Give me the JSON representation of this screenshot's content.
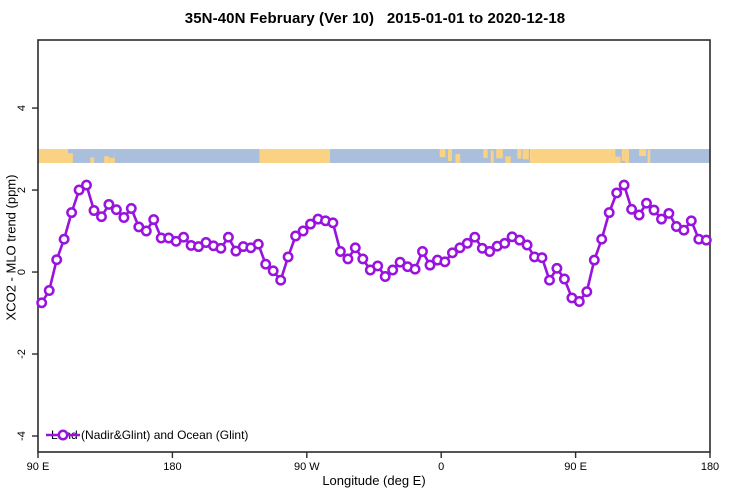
{
  "header": {
    "title": "35N-40N February (Ver 10)   2015-01-01 to 2020-12-18"
  },
  "chart_data": {
    "type": "line",
    "title": "35N-40N February (Ver 10)   2015-01-01 to 2020-12-18",
    "xlabel": "Longitude (deg E)",
    "ylabel": "XCO2 - MLO trend (ppm)",
    "xlim": [
      90,
      540
    ],
    "ylim": [
      -4.39,
      5.66
    ],
    "grid": false,
    "x_ticks": [
      {
        "pos": 90,
        "label": "90 E"
      },
      {
        "pos": 180,
        "label": "180"
      },
      {
        "pos": 270,
        "label": "90 W"
      },
      {
        "pos": 360,
        "label": "0"
      },
      {
        "pos": 450,
        "label": "90 E"
      },
      {
        "pos": 540,
        "label": "180"
      }
    ],
    "y_ticks": [
      {
        "pos": -4,
        "label": "-4"
      },
      {
        "pos": -2,
        "label": "-2"
      },
      {
        "pos": 0,
        "label": "0"
      },
      {
        "pos": 2,
        "label": "2"
      },
      {
        "pos": 4,
        "label": "4"
      }
    ],
    "legend": {
      "position": "bottom-left",
      "entries": [
        {
          "label": "Land (Nadir&Glint) and Ocean (Glint)",
          "color": "#9912DD",
          "marker": "open-circle"
        }
      ]
    },
    "series": [
      {
        "name": "Land (Nadir&Glint) and Ocean (Glint)",
        "color": "#9912DD",
        "marker": "open-circle",
        "x": [
          92.5,
          97.5,
          102.5,
          107.5,
          112.5,
          117.5,
          122.5,
          127.5,
          132.5,
          137.5,
          142.5,
          147.5,
          152.5,
          157.5,
          162.5,
          167.5,
          172.5,
          177.5,
          182.5,
          187.5,
          192.5,
          197.5,
          202.5,
          207.5,
          212.5,
          217.5,
          222.5,
          227.5,
          232.5,
          237.5,
          242.5,
          247.5,
          252.5,
          257.5,
          262.5,
          267.5,
          272.5,
          277.5,
          282.5,
          287.5,
          292.5,
          297.5,
          302.5,
          307.5,
          312.5,
          317.5,
          322.5,
          327.5,
          332.5,
          337.5,
          342.5,
          347.5,
          352.5,
          357.5,
          362.5,
          367.5,
          372.5,
          377.5,
          382.5,
          387.5,
          392.5,
          397.5,
          402.5,
          407.5,
          412.5,
          417.5,
          422.5,
          427.5,
          432.5,
          437.5,
          442.5,
          447.5,
          452.5,
          457.5,
          462.5,
          467.5,
          472.5,
          477.5,
          482.5,
          487.5,
          492.5,
          497.5,
          502.5,
          507.5,
          512.5,
          517.5,
          522.5,
          527.5,
          532.5,
          537.5
        ],
        "y": [
          -0.75,
          -0.45,
          0.3,
          0.8,
          1.45,
          2.0,
          2.12,
          1.5,
          1.35,
          1.65,
          1.52,
          1.33,
          1.55,
          1.1,
          1.0,
          1.28,
          0.83,
          0.83,
          0.75,
          0.85,
          0.65,
          0.62,
          0.72,
          0.64,
          0.58,
          0.85,
          0.51,
          0.62,
          0.59,
          0.68,
          0.19,
          0.03,
          -0.2,
          0.37,
          0.88,
          1.0,
          1.17,
          1.29,
          1.25,
          1.2,
          0.5,
          0.32,
          0.59,
          0.32,
          0.05,
          0.15,
          -0.11,
          0.05,
          0.24,
          0.13,
          0.07,
          0.5,
          0.17,
          0.29,
          0.25,
          0.47,
          0.59,
          0.7,
          0.85,
          0.58,
          0.5,
          0.63,
          0.7,
          0.86,
          0.78,
          0.66,
          0.37,
          0.35,
          -0.2,
          0.09,
          -0.17,
          -0.63,
          -0.72,
          -0.48,
          0.29,
          0.8,
          1.45,
          1.93,
          2.12,
          1.53,
          1.39,
          1.68,
          1.51,
          1.29,
          1.43,
          1.11,
          1.02,
          1.25,
          0.8,
          0.78
        ]
      }
    ],
    "surface_band": {
      "description": "land/ocean surface-type strip",
      "y_range_ppm": [
        2.66,
        3.0
      ],
      "colors": {
        "land": "#FAD284",
        "ocean": "#A9BFDC"
      },
      "segments": [
        {
          "from": 90,
          "to": 110,
          "type": "land"
        },
        {
          "from": 110,
          "to": 141.5,
          "type": "mixed"
        },
        {
          "from": 141.5,
          "to": 238.5,
          "type": "ocean"
        },
        {
          "from": 238.5,
          "to": 285.5,
          "type": "land"
        },
        {
          "from": 285.5,
          "to": 352.5,
          "type": "ocean"
        },
        {
          "from": 352.5,
          "to": 419.5,
          "type": "mixed"
        },
        {
          "from": 419.5,
          "to": 476.5,
          "type": "land"
        },
        {
          "from": 476.5,
          "to": 500,
          "type": "mixed"
        },
        {
          "from": 500,
          "to": 540,
          "type": "ocean"
        }
      ]
    },
    "axis_color": "#2b2b2b"
  }
}
